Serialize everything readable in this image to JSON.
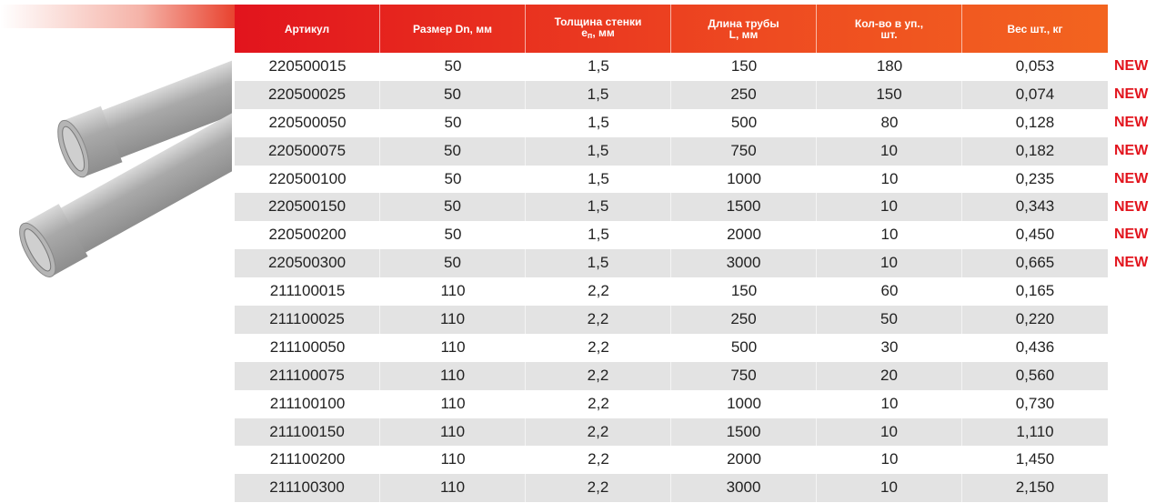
{
  "header": {
    "col0": "Артикул",
    "col1": "Размер Dn, мм",
    "col2": {
      "line1": "Толщина стенки",
      "main": "e",
      "sub": "п",
      "rest": ", мм"
    },
    "col3": {
      "line1": "Длина трубы",
      "line2": "L, мм"
    },
    "col4": {
      "line1": "Кол-во в уп.,",
      "line2": "шт."
    },
    "col5": "Вес шт., кг"
  },
  "table": {
    "rows": [
      [
        "220500015",
        "50",
        "1,5",
        "150",
        "180",
        "0,053",
        "NEW"
      ],
      [
        "220500025",
        "50",
        "1,5",
        "250",
        "150",
        "0,074",
        "NEW"
      ],
      [
        "220500050",
        "50",
        "1,5",
        "500",
        "80",
        "0,128",
        "NEW"
      ],
      [
        "220500075",
        "50",
        "1,5",
        "750",
        "10",
        "0,182",
        "NEW"
      ],
      [
        "220500100",
        "50",
        "1,5",
        "1000",
        "10",
        "0,235",
        "NEW"
      ],
      [
        "220500150",
        "50",
        "1,5",
        "1500",
        "10",
        "0,343",
        "NEW"
      ],
      [
        "220500200",
        "50",
        "1,5",
        "2000",
        "10",
        "0,450",
        "NEW"
      ],
      [
        "220500300",
        "50",
        "1,5",
        "3000",
        "10",
        "0,665",
        "NEW"
      ],
      [
        "211100015",
        "110",
        "2,2",
        "150",
        "60",
        "0,165"
      ],
      [
        "211100025",
        "110",
        "2,2",
        "250",
        "50",
        "0,220"
      ],
      [
        "211100050",
        "110",
        "2,2",
        "500",
        "30",
        "0,436"
      ],
      [
        "211100075",
        "110",
        "2,2",
        "750",
        "20",
        "0,560"
      ],
      [
        "211100100",
        "110",
        "2,2",
        "1000",
        "10",
        "0,730"
      ],
      [
        "211100150",
        "110",
        "2,2",
        "1500",
        "10",
        "1,110"
      ],
      [
        "211100200",
        "110",
        "2,2",
        "2000",
        "10",
        "1,450"
      ],
      [
        "211100300",
        "110",
        "2,2",
        "3000",
        "10",
        "2,150"
      ]
    ]
  }
}
